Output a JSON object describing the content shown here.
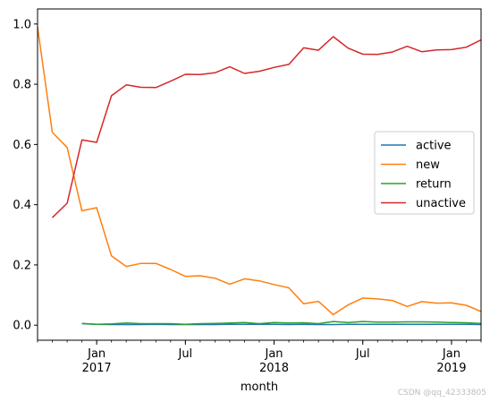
{
  "chart_data": {
    "type": "line",
    "xlabel": "month",
    "ylabel": "",
    "title": "",
    "xlim": [
      "2016-09",
      "2019-03"
    ],
    "ylim": [
      -0.05,
      1.05
    ],
    "y_ticks": [
      "0.0",
      "0.2",
      "0.4",
      "0.6",
      "0.8",
      "1.0"
    ],
    "x_tick_labels": [
      {
        "month": "2017-01",
        "lines": [
          "Jan",
          "2017"
        ]
      },
      {
        "month": "2017-07",
        "lines": [
          "Jul"
        ]
      },
      {
        "month": "2018-01",
        "lines": [
          "Jan",
          "2018"
        ]
      },
      {
        "month": "2018-07",
        "lines": [
          "Jul"
        ]
      },
      {
        "month": "2019-01",
        "lines": [
          "Jan",
          "2019"
        ]
      }
    ],
    "grid": false,
    "legend_position": "right",
    "x": [
      "2016-09",
      "2016-10",
      "2016-11",
      "2016-12",
      "2017-01",
      "2017-02",
      "2017-03",
      "2017-04",
      "2017-05",
      "2017-06",
      "2017-07",
      "2017-08",
      "2017-09",
      "2017-10",
      "2017-11",
      "2017-12",
      "2018-01",
      "2018-02",
      "2018-03",
      "2018-04",
      "2018-05",
      "2018-06",
      "2018-07",
      "2018-08",
      "2018-09",
      "2018-10",
      "2018-11",
      "2018-12",
      "2019-01",
      "2019-02",
      "2019-03"
    ],
    "series": [
      {
        "name": "active",
        "color": "#1f77b4",
        "values": [
          null,
          null,
          null,
          0.005,
          0.003,
          0.002,
          0.002,
          0.002,
          0.003,
          0.002,
          0.002,
          0.002,
          0.002,
          0.003,
          0.003,
          0.003,
          0.003,
          0.002,
          0.003,
          0.002,
          0.002,
          0.003,
          0.003,
          0.003,
          0.003,
          0.003,
          0.003,
          0.003,
          0.003,
          0.003,
          0.002
        ]
      },
      {
        "name": "new",
        "color": "#ff7f0e",
        "values": [
          0.99,
          0.64,
          0.59,
          0.38,
          0.39,
          0.23,
          0.195,
          0.205,
          0.205,
          0.185,
          0.162,
          0.164,
          0.156,
          0.136,
          0.154,
          0.147,
          0.135,
          0.124,
          0.071,
          0.079,
          0.035,
          0.067,
          0.09,
          0.087,
          0.082,
          0.062,
          0.078,
          0.073,
          0.074,
          0.066,
          0.045
        ]
      },
      {
        "name": "return",
        "color": "#2ca02c",
        "values": [
          null,
          null,
          null,
          0.006,
          0.003,
          0.004,
          0.007,
          0.005,
          0.005,
          0.005,
          0.003,
          0.005,
          0.006,
          0.007,
          0.009,
          0.005,
          0.009,
          0.007,
          0.008,
          0.005,
          0.012,
          0.009,
          0.012,
          0.01,
          0.01,
          0.011,
          0.011,
          0.01,
          0.009,
          0.008,
          0.006
        ]
      },
      {
        "name": "unactive",
        "color": "#d62728",
        "values": [
          null,
          0.357,
          0.405,
          0.615,
          0.607,
          0.762,
          0.798,
          0.79,
          0.789,
          0.81,
          0.833,
          0.832,
          0.838,
          0.858,
          0.836,
          0.843,
          0.856,
          0.866,
          0.921,
          0.913,
          0.958,
          0.92,
          0.9,
          0.899,
          0.907,
          0.926,
          0.908,
          0.914,
          0.915,
          0.923,
          0.947
        ]
      }
    ]
  },
  "watermark": "CSDN @qq_42333805"
}
